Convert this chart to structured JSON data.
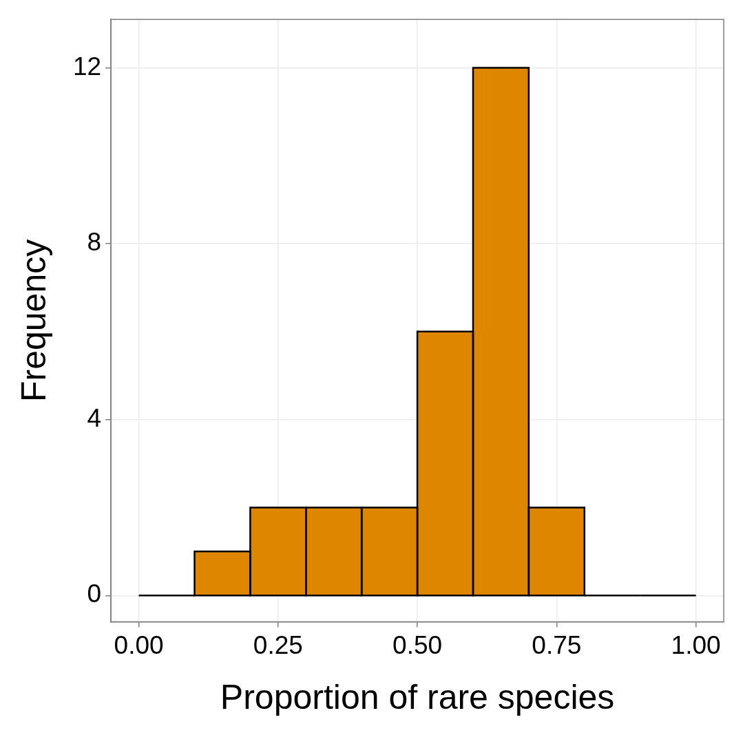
{
  "chart_data": {
    "type": "histogram",
    "xlabel": "Proportion of rare species",
    "ylabel": "Frequency",
    "bins": [
      0,
      0.1,
      0.2,
      0.3,
      0.4,
      0.5,
      0.6,
      0.7,
      0.8,
      0.9,
      1.0
    ],
    "values": [
      0,
      1,
      2,
      2,
      2,
      6,
      12,
      2,
      0,
      0
    ],
    "color": "#df8600",
    "xlim": [
      -0.05,
      1.05
    ],
    "xticks": [
      {
        "value": 0,
        "label": "0.00"
      },
      {
        "value": 0.25,
        "label": "0.25"
      },
      {
        "value": 0.5,
        "label": "0.50"
      },
      {
        "value": 0.75,
        "label": "0.75"
      },
      {
        "value": 1,
        "label": "1.00"
      }
    ],
    "ylim": [
      -0.6,
      13.1
    ],
    "yticks": [
      0,
      4,
      8,
      12
    ],
    "grid": true
  }
}
